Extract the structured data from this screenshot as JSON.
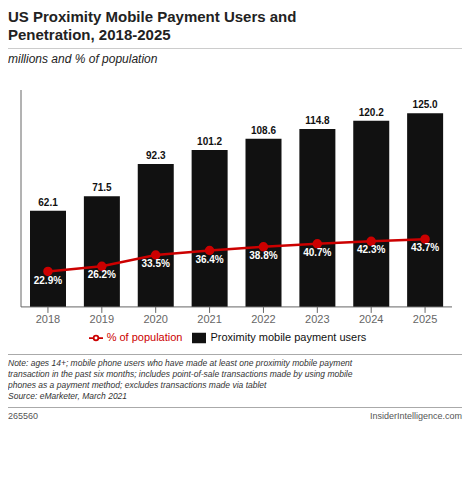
{
  "chart_data": {
    "type": "bar",
    "title": "US Proximity Mobile Payment Users and\nPenetration, 2018-2025",
    "subtitle": "millions and % of population",
    "categories": [
      "2018",
      "2019",
      "2020",
      "2021",
      "2022",
      "2023",
      "2024",
      "2025"
    ],
    "series": [
      {
        "name": "Proximity mobile payment users",
        "type": "bar",
        "color": "#111111",
        "values": [
          62.1,
          71.5,
          92.3,
          101.2,
          108.6,
          114.8,
          120.2,
          125.0
        ],
        "value_labels": [
          "62.1",
          "71.5",
          "92.3",
          "101.2",
          "108.6",
          "114.8",
          "120.2",
          "125.0"
        ]
      },
      {
        "name": "% of population",
        "type": "line",
        "color": "#cc0000",
        "marker": "circle",
        "values": [
          22.9,
          26.2,
          33.5,
          36.4,
          38.8,
          40.7,
          42.3,
          43.7
        ],
        "value_labels": [
          "22.9%",
          "26.2%",
          "33.5%",
          "36.4%",
          "38.8%",
          "40.7%",
          "42.3%",
          "43.7%"
        ]
      }
    ],
    "ylim": [
      0,
      140
    ],
    "grid": false,
    "legend": "bottom",
    "data_labels": true,
    "tick_labels": "x",
    "annotations": [
      "Note: ages 14+; mobile phone users who have made at least one proximity mobile payment\ntransaction in the past six months; includes point-of-sale transactions made by using mobile\nphones as a payment method; excludes transactions made via tablet\nSource: eMarketer, March 2021",
      "265560",
      "InsiderIntelligence.com"
    ]
  }
}
